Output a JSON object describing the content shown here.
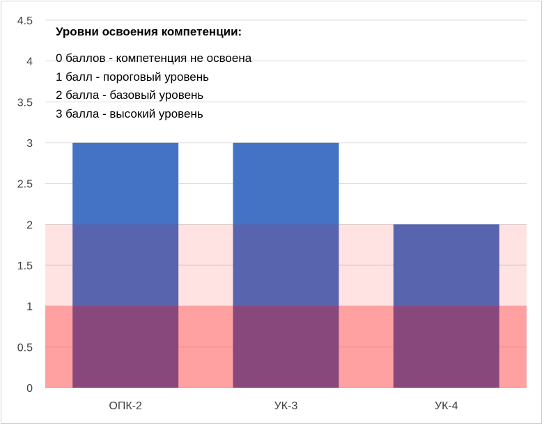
{
  "chart_data": {
    "type": "bar",
    "title": "",
    "xlabel": "",
    "ylabel": "",
    "categories": [
      "ОПК-2",
      "УК-3",
      "УК-4"
    ],
    "series": [
      {
        "values": [
          3,
          3,
          2
        ],
        "color": "#4472c4"
      }
    ],
    "ylim": [
      0,
      4.5
    ],
    "yticks": [
      "0",
      "0.5",
      "1",
      "1.5",
      "2",
      "2.5",
      "3",
      "3.5",
      "4",
      "4.5"
    ],
    "grid": true,
    "bands": [
      {
        "from": 0,
        "to": 1,
        "color": "#ff0000",
        "opacity": 0.37
      },
      {
        "from": 1,
        "to": 2,
        "color": "#ff0000",
        "opacity": 0.11
      }
    ],
    "annotation": {
      "title": "Уровни освоения компетенции:",
      "lines": [
        "0 баллов - компетенция не освоена",
        "1 балл - пороговый уровень",
        "2 балла - базовый уровень",
        "3 балла - высокий уровень"
      ]
    }
  }
}
